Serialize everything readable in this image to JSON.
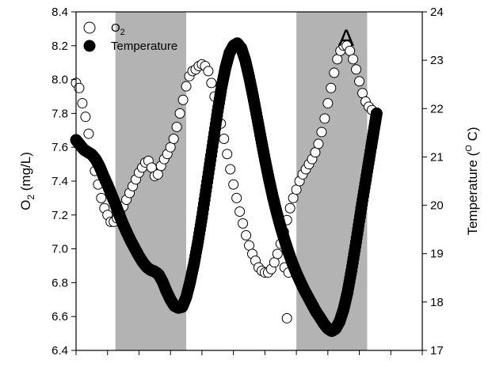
{
  "chart_data": {
    "type": "scatter",
    "panel_label": "A",
    "legend_position": "top-right",
    "left_axis": {
      "label_main": "O",
      "label_sub": "2",
      "label_unit": " (mg/L)",
      "ylim": [
        6.4,
        8.4
      ],
      "ticks": [
        6.4,
        6.6,
        6.8,
        7.0,
        7.2,
        7.4,
        7.6,
        7.8,
        8.0,
        8.2,
        8.4
      ],
      "tick_labels": [
        "6.4",
        "6.6",
        "6.8",
        "7.0",
        "7.2",
        "7.4",
        "7.6",
        "7.8",
        "8.0",
        "8.2",
        "8.4"
      ]
    },
    "right_axis": {
      "label_main": "Temperature (",
      "label_sup": "O",
      "label_unit": " C)",
      "ylim": [
        17,
        24
      ],
      "ticks": [
        17,
        18,
        19,
        20,
        21,
        22,
        23,
        24
      ],
      "tick_labels": [
        "17",
        "18",
        "19",
        "20",
        "21",
        "22",
        "23",
        "24"
      ]
    },
    "x_axis": {
      "xlim": [
        0,
        44
      ],
      "minor_ticks": [
        0,
        4,
        8,
        12,
        16,
        20,
        24,
        28,
        32,
        36,
        40,
        44
      ]
    },
    "shaded_bands": [
      {
        "x_start": 5,
        "x_end": 14
      },
      {
        "x_start": 28,
        "x_end": 37
      }
    ],
    "series": [
      {
        "name": "O2",
        "legend_main": "O",
        "legend_sub": "2",
        "marker": "open-circle",
        "axis": "left",
        "points": [
          [
            0,
            7.98
          ],
          [
            0.4,
            7.95
          ],
          [
            0.8,
            7.86
          ],
          [
            1.2,
            7.78
          ],
          [
            1.6,
            7.68
          ],
          [
            2,
            7.56
          ],
          [
            2.4,
            7.46
          ],
          [
            2.8,
            7.38
          ],
          [
            3.2,
            7.3
          ],
          [
            3.6,
            7.24
          ],
          [
            4,
            7.2
          ],
          [
            4.4,
            7.16
          ],
          [
            4.8,
            7.16
          ],
          [
            5.2,
            7.18
          ],
          [
            5.6,
            7.21
          ],
          [
            6,
            7.25
          ],
          [
            6.4,
            7.29
          ],
          [
            6.8,
            7.33
          ],
          [
            7.2,
            7.37
          ],
          [
            7.6,
            7.41
          ],
          [
            8,
            7.45
          ],
          [
            8.4,
            7.48
          ],
          [
            8.8,
            7.51
          ],
          [
            9.2,
            7.52
          ],
          [
            9.6,
            7.48
          ],
          [
            10,
            7.43
          ],
          [
            10.4,
            7.44
          ],
          [
            10.8,
            7.49
          ],
          [
            11.2,
            7.53
          ],
          [
            11.6,
            7.56
          ],
          [
            12,
            7.6
          ],
          [
            12.4,
            7.65
          ],
          [
            12.8,
            7.72
          ],
          [
            13.2,
            7.8
          ],
          [
            13.6,
            7.88
          ],
          [
            14,
            7.96
          ],
          [
            14.4,
            8.02
          ],
          [
            14.8,
            8.05
          ],
          [
            15.2,
            8.06
          ],
          [
            15.6,
            8.08
          ],
          [
            16,
            8.09
          ],
          [
            16.4,
            8.08
          ],
          [
            16.8,
            8.05
          ],
          [
            17.2,
            7.98
          ],
          [
            17.6,
            7.9
          ],
          [
            18,
            7.82
          ],
          [
            18.4,
            7.74
          ],
          [
            18.8,
            7.65
          ],
          [
            19.2,
            7.56
          ],
          [
            19.6,
            7.47
          ],
          [
            20,
            7.38
          ],
          [
            20.4,
            7.3
          ],
          [
            20.8,
            7.22
          ],
          [
            21.2,
            7.15
          ],
          [
            21.6,
            7.08
          ],
          [
            22,
            7.02
          ],
          [
            22.4,
            6.97
          ],
          [
            22.8,
            6.93
          ],
          [
            23.2,
            6.89
          ],
          [
            23.6,
            6.87
          ],
          [
            24,
            6.86
          ],
          [
            24.4,
            6.86
          ],
          [
            24.8,
            6.88
          ],
          [
            25.2,
            6.92
          ],
          [
            25.6,
            6.97
          ],
          [
            26,
            7.03
          ],
          [
            26.4,
            7.1
          ],
          [
            26.8,
            7.17
          ],
          [
            27.2,
            7.24
          ],
          [
            27.6,
            7.3
          ],
          [
            28,
            7.35
          ],
          [
            28.4,
            7.4
          ],
          [
            28.8,
            7.44
          ],
          [
            29.2,
            7.47
          ],
          [
            29.6,
            7.5
          ],
          [
            30,
            7.53
          ],
          [
            30.4,
            7.57
          ],
          [
            30.8,
            7.62
          ],
          [
            31.2,
            7.69
          ],
          [
            31.6,
            7.77
          ],
          [
            32,
            7.86
          ],
          [
            32.4,
            7.95
          ],
          [
            32.8,
            8.04
          ],
          [
            33.2,
            8.12
          ],
          [
            33.6,
            8.17
          ],
          [
            34,
            8.2
          ],
          [
            34.4,
            8.2
          ],
          [
            34.8,
            8.17
          ],
          [
            35.2,
            8.12
          ],
          [
            35.6,
            8.06
          ],
          [
            36,
            7.99
          ],
          [
            36.4,
            7.92
          ],
          [
            36.8,
            7.87
          ],
          [
            37.2,
            7.84
          ],
          [
            37.6,
            7.82
          ],
          [
            26.5,
            6.89
          ],
          [
            27,
            6.86
          ],
          [
            26.8,
            6.59
          ]
        ]
      },
      {
        "name": "Temperature",
        "legend_main": "Temperature",
        "marker": "filled-circle",
        "axis": "right",
        "points": [
          [
            0,
            21.35
          ],
          [
            0.5,
            21.25
          ],
          [
            1,
            21.15
          ],
          [
            1.5,
            21.1
          ],
          [
            2,
            21.05
          ],
          [
            2.5,
            20.95
          ],
          [
            3,
            20.8
          ],
          [
            3.5,
            20.6
          ],
          [
            4,
            20.42
          ],
          [
            4.5,
            20.22
          ],
          [
            5,
            20.02
          ],
          [
            5.5,
            19.8
          ],
          [
            6,
            19.6
          ],
          [
            6.5,
            19.42
          ],
          [
            7,
            19.25
          ],
          [
            7.5,
            19.1
          ],
          [
            8,
            18.95
          ],
          [
            8.5,
            18.82
          ],
          [
            9,
            18.72
          ],
          [
            9.5,
            18.66
          ],
          [
            10,
            18.63
          ],
          [
            10.5,
            18.57
          ],
          [
            11,
            18.42
          ],
          [
            11.5,
            18.22
          ],
          [
            12,
            18.05
          ],
          [
            12.5,
            17.92
          ],
          [
            13,
            17.88
          ],
          [
            13.5,
            17.9
          ],
          [
            14,
            18.1
          ],
          [
            14.5,
            18.42
          ],
          [
            15,
            18.8
          ],
          [
            15.5,
            19.25
          ],
          [
            16,
            19.75
          ],
          [
            16.5,
            20.3
          ],
          [
            17,
            20.85
          ],
          [
            17.5,
            21.4
          ],
          [
            18,
            21.95
          ],
          [
            18.5,
            22.45
          ],
          [
            19,
            22.85
          ],
          [
            19.5,
            23.15
          ],
          [
            20,
            23.3
          ],
          [
            20.5,
            23.35
          ],
          [
            21,
            23.25
          ],
          [
            21.5,
            23.0
          ],
          [
            22,
            22.65
          ],
          [
            22.5,
            22.25
          ],
          [
            23,
            21.82
          ],
          [
            23.5,
            21.38
          ],
          [
            24,
            20.95
          ],
          [
            24.5,
            20.55
          ],
          [
            25,
            20.18
          ],
          [
            25.5,
            19.85
          ],
          [
            26,
            19.55
          ],
          [
            26.5,
            19.28
          ],
          [
            27,
            19.03
          ],
          [
            27.5,
            18.8
          ],
          [
            28,
            18.6
          ],
          [
            28.5,
            18.42
          ],
          [
            29,
            18.25
          ],
          [
            29.5,
            18.1
          ],
          [
            30,
            17.95
          ],
          [
            30.5,
            17.8
          ],
          [
            31,
            17.68
          ],
          [
            31.5,
            17.55
          ],
          [
            32,
            17.45
          ],
          [
            32.5,
            17.4
          ],
          [
            33,
            17.45
          ],
          [
            33.5,
            17.6
          ],
          [
            34,
            17.85
          ],
          [
            34.5,
            18.2
          ],
          [
            35,
            18.65
          ],
          [
            35.5,
            19.15
          ],
          [
            36,
            19.68
          ],
          [
            36.5,
            20.2
          ],
          [
            37,
            20.7
          ],
          [
            37.5,
            21.2
          ],
          [
            37.9,
            21.6
          ],
          [
            38.2,
            21.9
          ]
        ]
      }
    ]
  }
}
